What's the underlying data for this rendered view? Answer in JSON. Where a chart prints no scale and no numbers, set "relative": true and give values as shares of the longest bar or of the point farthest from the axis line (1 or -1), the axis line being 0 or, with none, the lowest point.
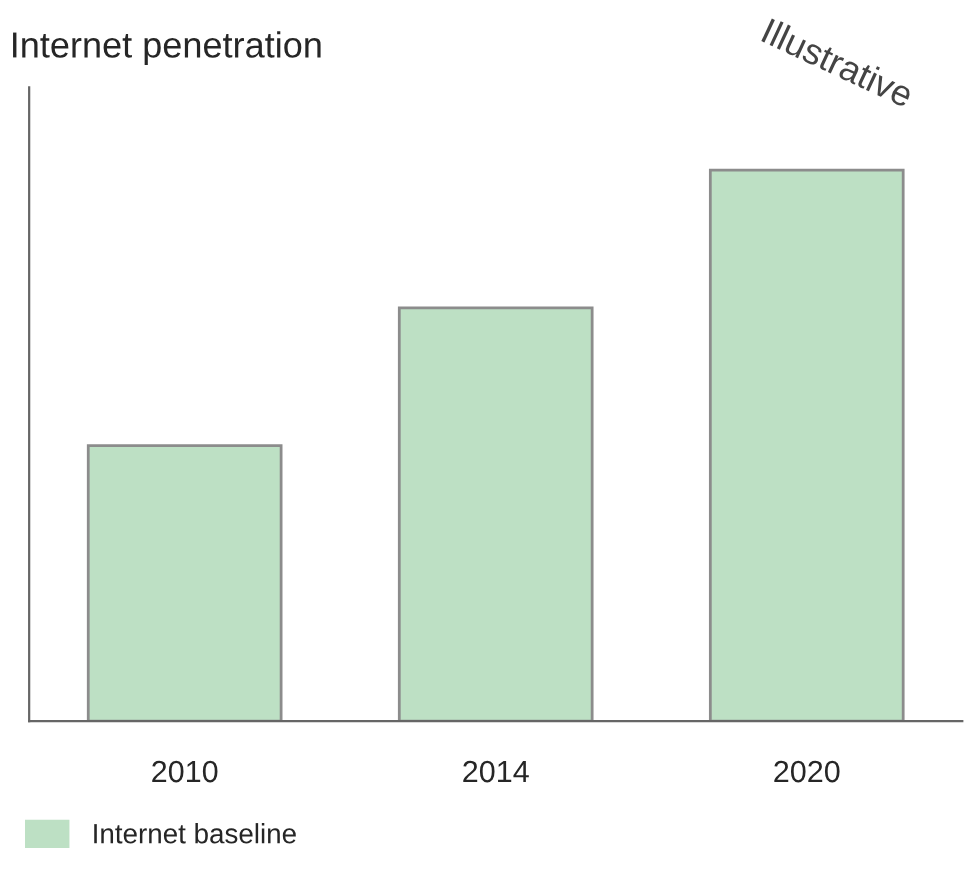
{
  "chart_data": {
    "type": "bar",
    "title": "Internet penetration",
    "categories": [
      "2010",
      "2014",
      "2020"
    ],
    "relative": true,
    "series": [
      {
        "name": "Internet baseline",
        "color": "#bde0c4",
        "values": [
          0.5,
          0.75,
          1.0
        ]
      }
    ],
    "annotations": [
      "Illustrative"
    ],
    "legend": "bottom left",
    "grid": false
  }
}
